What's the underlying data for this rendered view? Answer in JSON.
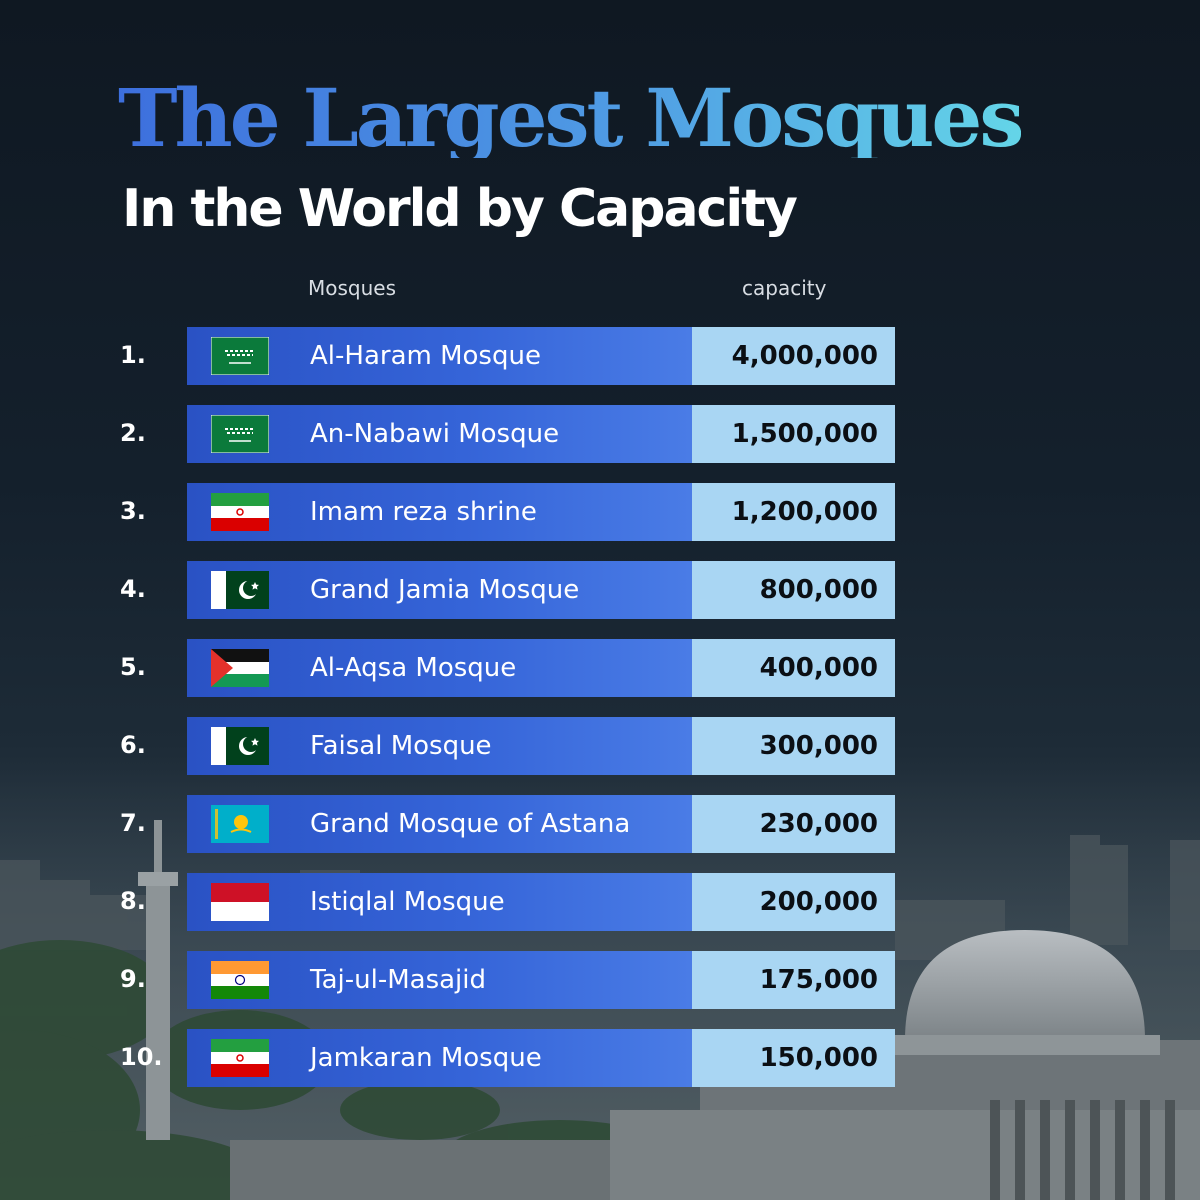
{
  "title": {
    "line1": "The Largest Mosques",
    "line2": "In the World by Capacity"
  },
  "headers": {
    "mosques": "Mosques",
    "capacity": "capacity"
  },
  "rows": [
    {
      "rank": "1.",
      "name": "Al-Haram Mosque",
      "capacity": "4,000,000",
      "flag": "saudi-arabia"
    },
    {
      "rank": "2.",
      "name": "An-Nabawi Mosque",
      "capacity": "1,500,000",
      "flag": "saudi-arabia"
    },
    {
      "rank": "3.",
      "name": "Imam reza shrine",
      "capacity": "1,200,000",
      "flag": "iran"
    },
    {
      "rank": "4.",
      "name": "Grand Jamia Mosque",
      "capacity": "800,000",
      "flag": "pakistan"
    },
    {
      "rank": "5.",
      "name": "Al-Aqsa Mosque",
      "capacity": "400,000",
      "flag": "palestine"
    },
    {
      "rank": "6.",
      "name": "Faisal Mosque",
      "capacity": "300,000",
      "flag": "pakistan"
    },
    {
      "rank": "7.",
      "name": "Grand Mosque of Astana",
      "capacity": "230,000",
      "flag": "kazakhstan"
    },
    {
      "rank": "8.",
      "name": "Istiqlal Mosque",
      "capacity": "200,000",
      "flag": "indonesia"
    },
    {
      "rank": "9.",
      "name": "Taj-ul-Masajid",
      "capacity": "175,000",
      "flag": "india"
    },
    {
      "rank": "10.",
      "name": "Jamkaran Mosque",
      "capacity": "150,000",
      "flag": "iran"
    }
  ],
  "colors": {
    "name_bg": "#3564d8",
    "capacity_bg": "#a9d6f3",
    "title_start": "#3d6fdd",
    "title_end": "#64d5e8"
  }
}
